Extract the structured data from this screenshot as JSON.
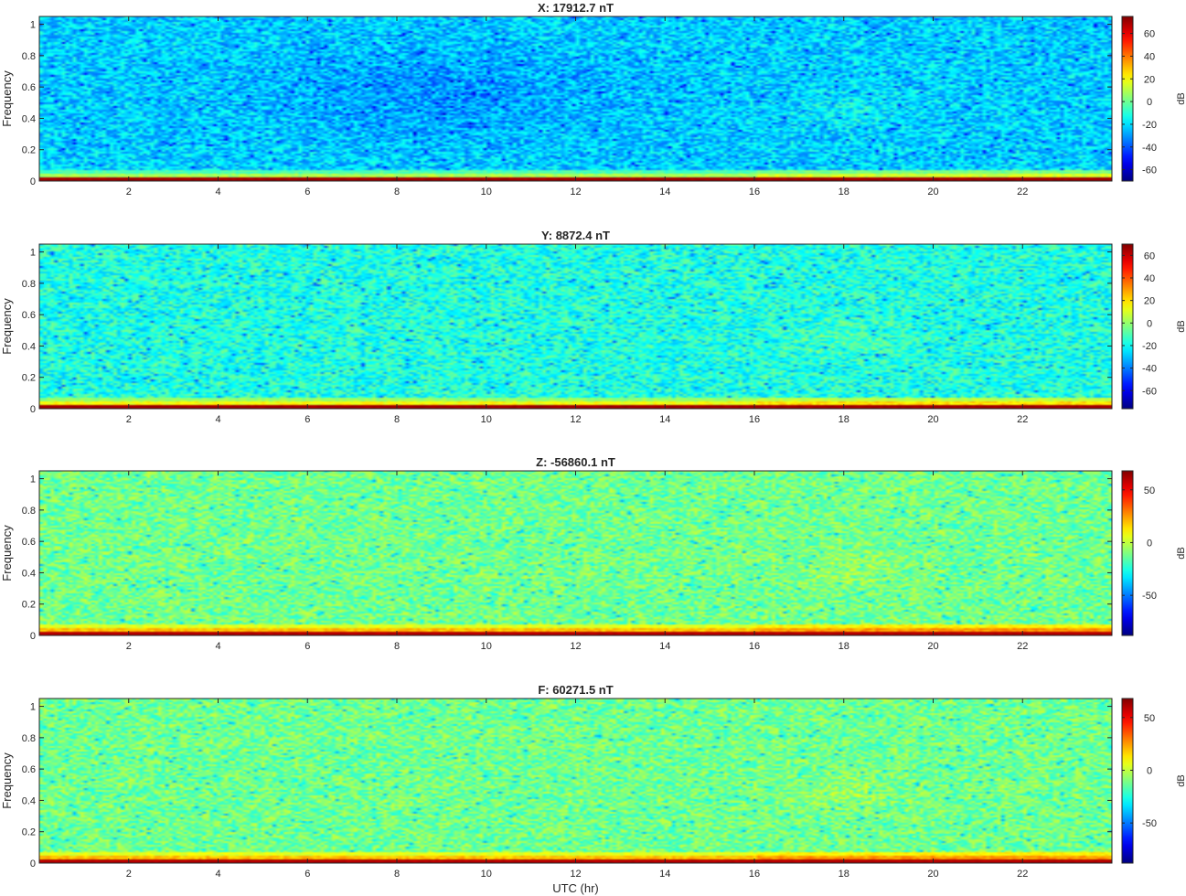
{
  "chart_data": [
    {
      "type": "heatmap",
      "title": "X: 17912.7 nT",
      "ylabel": "Frequency",
      "xlabel": "",
      "xlim": [
        0,
        24
      ],
      "ylim": [
        0,
        1.05
      ],
      "xticks": [
        2,
        4,
        6,
        8,
        10,
        12,
        14,
        16,
        18,
        20,
        22
      ],
      "yticks": [
        0,
        0.2,
        0.4,
        0.6,
        0.8,
        1
      ],
      "colorbar": {
        "label": "dB",
        "clim": [
          -70,
          75
        ],
        "ticks": [
          -60,
          -40,
          -20,
          0,
          20,
          40,
          60
        ]
      },
      "colormap": "jet",
      "description_level": {
        "background_db": -22,
        "low_freq_band_db": 70
      }
    },
    {
      "type": "heatmap",
      "title": "Y: 8872.4 nT",
      "ylabel": "Frequency",
      "xlabel": "",
      "xlim": [
        0,
        24
      ],
      "ylim": [
        0,
        1.05
      ],
      "xticks": [
        2,
        4,
        6,
        8,
        10,
        12,
        14,
        16,
        18,
        20,
        22
      ],
      "yticks": [
        0,
        0.2,
        0.4,
        0.6,
        0.8,
        1
      ],
      "colorbar": {
        "label": "dB",
        "clim": [
          -76,
          70
        ],
        "ticks": [
          -60,
          -40,
          -20,
          0,
          20,
          40,
          60
        ]
      },
      "colormap": "jet",
      "description_level": {
        "background_db": -17,
        "low_freq_band_db": 65
      }
    },
    {
      "type": "heatmap",
      "title": "Z: -56860.1 nT",
      "ylabel": "Frequency",
      "xlabel": "",
      "xlim": [
        0,
        24
      ],
      "ylim": [
        0,
        1.05
      ],
      "xticks": [
        2,
        4,
        6,
        8,
        10,
        12,
        14,
        16,
        18,
        20,
        22
      ],
      "yticks": [
        0,
        0.2,
        0.4,
        0.6,
        0.8,
        1
      ],
      "colorbar": {
        "label": "dB",
        "clim": [
          -88,
          68
        ],
        "ticks": [
          -50,
          0,
          50
        ]
      },
      "colormap": "jet",
      "description_level": {
        "background_db": -12,
        "low_freq_band_db": 60
      }
    },
    {
      "type": "heatmap",
      "title": "F: 60271.5 nT",
      "ylabel": "Frequency",
      "xlabel": "UTC (hr)",
      "xlim": [
        0,
        24
      ],
      "ylim": [
        0,
        1.05
      ],
      "xticks": [
        2,
        4,
        6,
        8,
        10,
        12,
        14,
        16,
        18,
        20,
        22
      ],
      "yticks": [
        0,
        0.2,
        0.4,
        0.6,
        0.8,
        1
      ],
      "colorbar": {
        "label": "dB",
        "clim": [
          -88,
          68
        ],
        "ticks": [
          -50,
          0,
          50
        ]
      },
      "colormap": "jet",
      "description_level": {
        "background_db": -12,
        "low_freq_band_db": 60
      }
    }
  ]
}
